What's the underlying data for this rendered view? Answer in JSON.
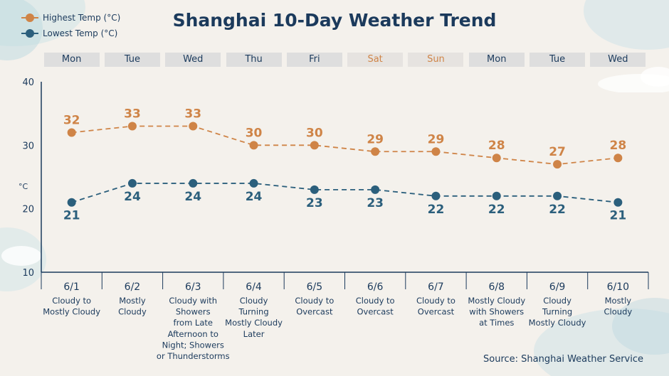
{
  "title": "Shanghai 10-Day Weather Trend",
  "legend": {
    "high_label": "Highest Temp (°C)",
    "low_label": "Lowest Temp (°C)"
  },
  "days": [
    {
      "label": "Mon",
      "weekend": false
    },
    {
      "label": "Tue",
      "weekend": false
    },
    {
      "label": "Wed",
      "weekend": false
    },
    {
      "label": "Thu",
      "weekend": false
    },
    {
      "label": "Fri",
      "weekend": false
    },
    {
      "label": "Sat",
      "weekend": true
    },
    {
      "label": "Sun",
      "weekend": true
    },
    {
      "label": "Mon",
      "weekend": false
    },
    {
      "label": "Tue",
      "weekend": false
    },
    {
      "label": "Wed",
      "weekend": false
    }
  ],
  "forecasts": [
    {
      "date": "6/1",
      "desc": [
        "Cloudy to",
        "Mostly Cloudy"
      ]
    },
    {
      "date": "6/2",
      "desc": [
        "Mostly",
        "Cloudy"
      ]
    },
    {
      "date": "6/3",
      "desc": [
        "Cloudy with",
        "Showers",
        "from Late",
        "Afternoon to",
        "Night; Showers",
        "or Thunderstorms"
      ]
    },
    {
      "date": "6/4",
      "desc": [
        "Cloudy",
        "Turning",
        "Mostly Cloudy",
        "Later"
      ]
    },
    {
      "date": "6/5",
      "desc": [
        "Cloudy to",
        "Overcast"
      ]
    },
    {
      "date": "6/6",
      "desc": [
        "Cloudy to",
        "Overcast"
      ]
    },
    {
      "date": "6/7",
      "desc": [
        "Cloudy to",
        "Overcast"
      ]
    },
    {
      "date": "6/8",
      "desc": [
        "Mostly Cloudy",
        "with Showers",
        "at Times"
      ]
    },
    {
      "date": "6/9",
      "desc": [
        "Cloudy",
        "Turning",
        "Mostly Cloudy"
      ]
    },
    {
      "date": "6/10",
      "desc": [
        "Mostly",
        "Cloudy"
      ]
    }
  ],
  "source": "Source: Shanghai Weather Service",
  "colors": {
    "high": "#cf8447",
    "low": "#2b5f7c",
    "axis": "#1b3a5c",
    "text": "#1b3a5c"
  },
  "chart_data": {
    "type": "line",
    "title": "Shanghai 10-Day Weather Trend",
    "x": [
      "6/1",
      "6/2",
      "6/3",
      "6/4",
      "6/5",
      "6/6",
      "6/7",
      "6/8",
      "6/9",
      "6/10"
    ],
    "series": [
      {
        "name": "Highest Temp (°C)",
        "values": [
          32,
          33,
          33,
          30,
          30,
          29,
          29,
          28,
          27,
          28
        ]
      },
      {
        "name": "Lowest Temp (°C)",
        "values": [
          21,
          24,
          24,
          24,
          23,
          23,
          22,
          22,
          22,
          21
        ]
      }
    ],
    "ylabel": "°C",
    "ylim": [
      10,
      40
    ],
    "yticks": [
      10,
      20,
      30,
      40
    ],
    "line_style": "dashed",
    "grid": false,
    "legend_position": "top-left"
  }
}
